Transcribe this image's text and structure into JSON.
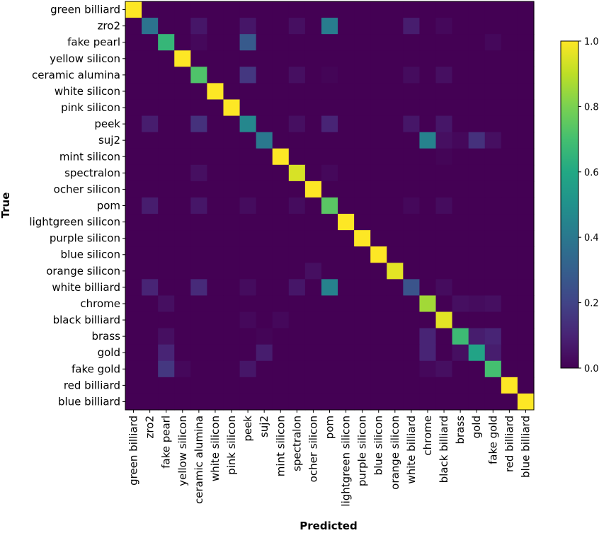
{
  "chart_data": {
    "type": "heatmap",
    "title": "",
    "xlabel": "Predicted",
    "ylabel": "True",
    "labels": [
      "green billiard",
      "zro2",
      "fake pearl",
      "yellow silicon",
      "ceramic alumina",
      "white silicon",
      "pink silicon",
      "peek",
      "suj2",
      "mint silicon",
      "spectralon",
      "ocher silicon",
      "pom",
      "lightgreen silicon",
      "purple silicon",
      "blue silicon",
      "orange silicon",
      "white billiard",
      "chrome",
      "black billiard",
      "brass",
      "gold",
      "fake gold",
      "red billiard",
      "blue billiard"
    ],
    "colorbar": {
      "min": 0.0,
      "max": 1.0,
      "ticks": [
        "0.0",
        "0.2",
        "0.4",
        "0.6",
        "0.8",
        "1.0"
      ],
      "colormap": "viridis"
    },
    "matrix": [
      [
        1.0,
        0,
        0,
        0,
        0,
        0,
        0,
        0,
        0,
        0,
        0,
        0,
        0,
        0,
        0,
        0,
        0,
        0,
        0,
        0,
        0,
        0,
        0,
        0,
        0
      ],
      [
        0,
        0.38,
        0,
        0,
        0.06,
        0,
        0,
        0.06,
        0,
        0,
        0.04,
        0,
        0.42,
        0,
        0,
        0,
        0,
        0.08,
        0,
        0.02,
        0,
        0,
        0,
        0,
        0
      ],
      [
        0,
        0,
        0.66,
        0,
        0.02,
        0,
        0,
        0.28,
        0,
        0,
        0,
        0,
        0,
        0,
        0,
        0,
        0,
        0,
        0,
        0,
        0,
        0,
        0.02,
        0,
        0
      ],
      [
        0,
        0,
        0,
        1.0,
        0,
        0,
        0,
        0,
        0,
        0,
        0,
        0,
        0,
        0,
        0,
        0,
        0,
        0,
        0,
        0,
        0,
        0,
        0,
        0,
        0
      ],
      [
        0,
        0,
        0,
        0,
        0.72,
        0,
        0,
        0.16,
        0,
        0,
        0.04,
        0,
        0.01,
        0,
        0,
        0,
        0,
        0.03,
        0,
        0.04,
        0,
        0,
        0,
        0,
        0
      ],
      [
        0,
        0,
        0,
        0,
        0,
        1.0,
        0,
        0,
        0,
        0,
        0,
        0,
        0,
        0,
        0,
        0,
        0,
        0,
        0,
        0,
        0,
        0,
        0,
        0,
        0
      ],
      [
        0,
        0,
        0,
        0,
        0,
        0,
        1.0,
        0,
        0,
        0,
        0,
        0,
        0,
        0,
        0,
        0,
        0,
        0,
        0,
        0,
        0,
        0,
        0,
        0,
        0
      ],
      [
        0,
        0.08,
        0,
        0,
        0.14,
        0,
        0,
        0.46,
        0,
        0,
        0.04,
        0,
        0.1,
        0,
        0,
        0,
        0,
        0.06,
        0,
        0.06,
        0,
        0,
        0,
        0,
        0
      ],
      [
        0,
        0,
        0,
        0,
        0,
        0,
        0,
        0,
        0.4,
        0,
        0,
        0,
        0,
        0,
        0,
        0,
        0,
        0,
        0.44,
        0.04,
        0.02,
        0.14,
        0.04,
        0,
        0
      ],
      [
        0,
        0,
        0,
        0,
        0,
        0,
        0,
        0,
        0,
        1.0,
        0,
        0,
        0,
        0,
        0,
        0,
        0,
        0,
        0,
        0.01,
        0,
        0,
        0,
        0,
        0
      ],
      [
        0,
        0,
        0,
        0,
        0.04,
        0,
        0,
        0,
        0,
        0,
        0.94,
        0,
        0.02,
        0,
        0,
        0,
        0,
        0,
        0,
        0,
        0,
        0,
        0,
        0,
        0
      ],
      [
        0,
        0,
        0,
        0,
        0,
        0,
        0,
        0,
        0,
        0,
        0,
        1.0,
        0,
        0,
        0,
        0,
        0,
        0,
        0,
        0,
        0,
        0,
        0,
        0,
        0
      ],
      [
        0,
        0.08,
        0,
        0,
        0.06,
        0,
        0,
        0.03,
        0,
        0,
        0.03,
        0,
        0.74,
        0,
        0,
        0,
        0,
        0.02,
        0,
        0.03,
        0,
        0,
        0,
        0,
        0
      ],
      [
        0,
        0,
        0,
        0,
        0,
        0,
        0,
        0,
        0,
        0,
        0,
        0,
        0,
        1.0,
        0,
        0,
        0,
        0,
        0,
        0,
        0,
        0,
        0,
        0,
        0
      ],
      [
        0,
        0,
        0,
        0,
        0,
        0,
        0,
        0,
        0,
        0,
        0,
        0,
        0,
        0,
        1.0,
        0,
        0,
        0,
        0,
        0,
        0,
        0,
        0,
        0,
        0
      ],
      [
        0,
        0,
        0,
        0,
        0,
        0,
        0,
        0,
        0,
        0,
        0,
        0,
        0,
        0,
        0,
        1.0,
        0,
        0,
        0,
        0,
        0,
        0,
        0,
        0,
        0
      ],
      [
        0,
        0,
        0,
        0,
        0,
        0,
        0,
        0,
        0,
        0,
        0,
        0.04,
        0,
        0,
        0,
        0,
        0.96,
        0,
        0,
        0,
        0,
        0,
        0,
        0,
        0
      ],
      [
        0,
        0.1,
        0,
        0,
        0.12,
        0,
        0,
        0.03,
        0,
        0,
        0.06,
        0,
        0.44,
        0,
        0,
        0,
        0,
        0.26,
        0,
        0.03,
        0,
        0,
        0,
        0,
        0
      ],
      [
        0,
        0,
        0.04,
        0,
        0,
        0,
        0,
        0,
        0,
        0,
        0,
        0,
        0,
        0,
        0,
        0,
        0,
        0,
        0.86,
        0,
        0.04,
        0.03,
        0.04,
        0,
        0
      ],
      [
        0,
        0,
        0,
        0,
        0,
        0,
        0,
        0.02,
        0,
        0.02,
        0,
        0,
        0,
        0,
        0,
        0,
        0,
        0,
        0,
        0.96,
        0,
        0,
        0,
        0,
        0
      ],
      [
        0,
        0,
        0.04,
        0,
        0,
        0,
        0,
        0,
        0.01,
        0,
        0,
        0,
        0,
        0,
        0,
        0,
        0,
        0,
        0.1,
        0,
        0.68,
        0.08,
        0.1,
        0,
        0
      ],
      [
        0,
        0,
        0.1,
        0,
        0,
        0,
        0,
        0,
        0.08,
        0,
        0,
        0,
        0,
        0,
        0,
        0,
        0,
        0,
        0.1,
        0,
        0.04,
        0.58,
        0.08,
        0,
        0
      ],
      [
        0,
        0,
        0.16,
        0.02,
        0,
        0,
        0,
        0.06,
        0,
        0,
        0,
        0,
        0,
        0,
        0,
        0,
        0,
        0,
        0.02,
        0.04,
        0,
        0,
        0.7,
        0,
        0
      ],
      [
        0,
        0,
        0,
        0,
        0,
        0,
        0,
        0,
        0,
        0,
        0,
        0,
        0,
        0,
        0,
        0,
        0,
        0,
        0,
        0,
        0,
        0,
        0,
        1.0,
        0
      ],
      [
        0,
        0,
        0,
        0,
        0,
        0,
        0,
        0,
        0,
        0,
        0,
        0,
        0,
        0,
        0,
        0,
        0,
        0,
        0,
        0,
        0,
        0,
        0,
        0,
        1.0
      ]
    ]
  }
}
